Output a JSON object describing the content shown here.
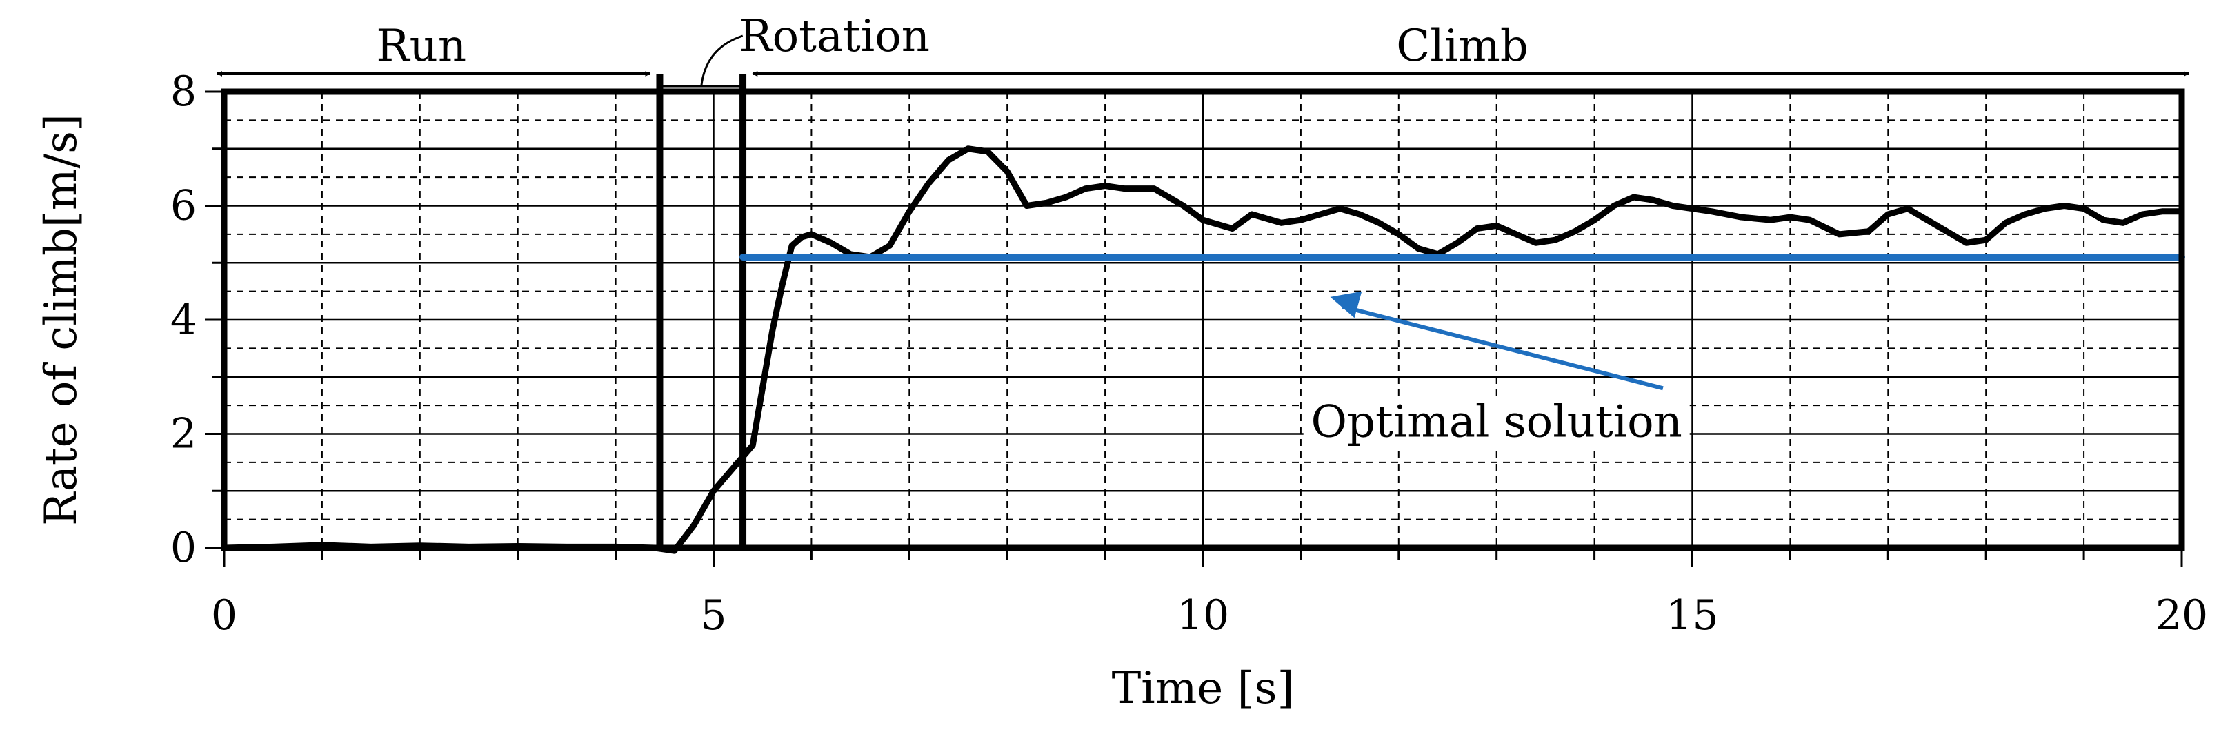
{
  "chart_data": {
    "type": "line",
    "xlabel": "Time [s]",
    "ylabel": "Rate of climb[m/s]",
    "xlim": [
      0,
      20
    ],
    "ylim": [
      0,
      8
    ],
    "x_ticks": [
      0,
      5,
      10,
      15,
      20
    ],
    "y_ticks": [
      0,
      2,
      4,
      6,
      8
    ],
    "x_minor_step": 1,
    "y_minor_step": 1,
    "grid": true,
    "phase_boundaries": [
      4.45,
      5.3
    ],
    "phases": [
      {
        "label": "Run",
        "start": 0,
        "end": 4.45
      },
      {
        "label": "Rotation",
        "start": 4.45,
        "end": 5.3
      },
      {
        "label": "Climb",
        "start": 5.3,
        "end": 20
      }
    ],
    "series": [
      {
        "name": "Rate of climb",
        "color": "#000000",
        "x": [
          0,
          0.5,
          1.0,
          1.5,
          2.0,
          2.5,
          3.0,
          3.5,
          4.0,
          4.4,
          4.6,
          4.8,
          5.0,
          5.2,
          5.3,
          5.4,
          5.5,
          5.6,
          5.7,
          5.8,
          5.9,
          6.0,
          6.2,
          6.4,
          6.6,
          6.8,
          7.0,
          7.2,
          7.4,
          7.6,
          7.8,
          8.0,
          8.2,
          8.4,
          8.6,
          8.8,
          9.0,
          9.2,
          9.5,
          9.8,
          10.0,
          10.3,
          10.5,
          10.8,
          11.0,
          11.2,
          11.4,
          11.6,
          11.8,
          12.0,
          12.2,
          12.4,
          12.6,
          12.8,
          13.0,
          13.2,
          13.4,
          13.6,
          13.8,
          14.0,
          14.2,
          14.4,
          14.6,
          14.8,
          15.0,
          15.2,
          15.5,
          15.8,
          16.0,
          16.2,
          16.5,
          16.8,
          17.0,
          17.2,
          17.4,
          17.6,
          17.8,
          18.0,
          18.2,
          18.4,
          18.6,
          18.8,
          19.0,
          19.2,
          19.4,
          19.6,
          19.8,
          20.0
        ],
        "y": [
          0.0,
          0.02,
          0.05,
          0.02,
          0.04,
          0.02,
          0.03,
          0.02,
          0.02,
          0.0,
          -0.05,
          0.4,
          1.0,
          1.4,
          1.6,
          1.8,
          2.8,
          3.8,
          4.6,
          5.3,
          5.45,
          5.5,
          5.35,
          5.15,
          5.1,
          5.3,
          5.9,
          6.4,
          6.8,
          7.0,
          6.95,
          6.6,
          6.0,
          6.05,
          6.15,
          6.3,
          6.35,
          6.3,
          6.3,
          6.0,
          5.75,
          5.6,
          5.85,
          5.7,
          5.75,
          5.85,
          5.95,
          5.85,
          5.7,
          5.5,
          5.25,
          5.15,
          5.35,
          5.6,
          5.65,
          5.5,
          5.35,
          5.4,
          5.55,
          5.75,
          6.0,
          6.15,
          6.1,
          6.0,
          5.95,
          5.9,
          5.8,
          5.75,
          5.8,
          5.75,
          5.5,
          5.55,
          5.85,
          5.95,
          5.75,
          5.55,
          5.35,
          5.4,
          5.7,
          5.85,
          5.95,
          6.0,
          5.95,
          5.75,
          5.7,
          5.85,
          5.9,
          5.9
        ]
      },
      {
        "name": "Optimal solution",
        "color": "#1f6fbf",
        "x": [
          5.3,
          20
        ],
        "y": [
          5.1,
          5.1
        ]
      }
    ],
    "annotations": [
      {
        "text": "Optimal solution",
        "arrow_to": [
          11.3,
          4.4
        ],
        "text_at": [
          13.0,
          2.0
        ]
      }
    ]
  }
}
